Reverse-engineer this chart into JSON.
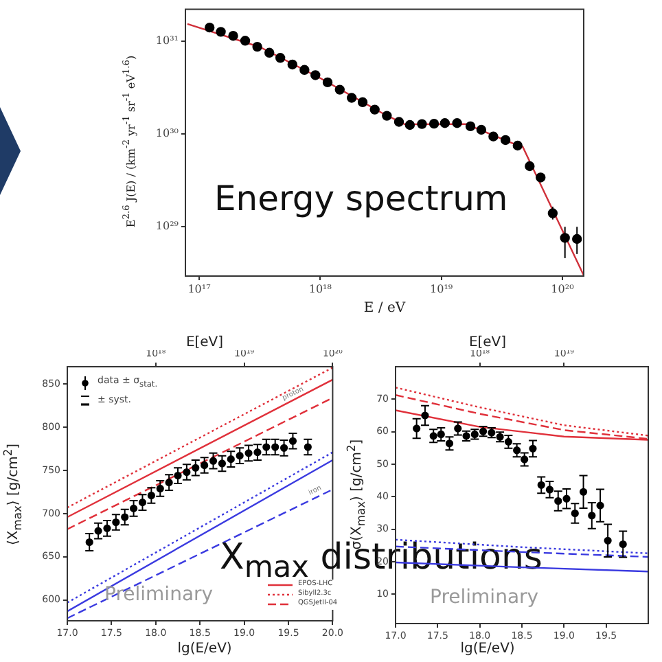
{
  "chart_data": [
    {
      "type": "scatter",
      "xlabel": "E / eV",
      "ylabel": "E$^{2.6}$ J(E) / (km$^{-2}$ yr$^{-1}$ sr$^{-1}$ eV$^{1.6}$)",
      "log": "xy",
      "xlim": [
        7.7e+16,
        1.5e+20
      ],
      "xticks": [
        {
          "value": 1e+17,
          "label": "10¹⁷"
        },
        {
          "value": 1e+18,
          "label": "10¹⁸"
        },
        {
          "value": 1e+19,
          "label": "10¹⁹"
        },
        {
          "value": 1e+20,
          "label": "10²⁰"
        }
      ],
      "ylim": [
        2.95e+28,
        2.2e+31
      ],
      "yticks": [
        {
          "value": 1e+29,
          "label": "10²⁹"
        },
        {
          "value": 1e+30,
          "label": "10³⁰"
        },
        {
          "value": 1e+31,
          "label": "10³¹"
        }
      ],
      "annotations": [
        "Energy spectrum"
      ],
      "series": [
        {
          "type": "scatter",
          "color": "#000000",
          "marker": "circle",
          "x": [
            1.22e+17,
            1.51e+17,
            1.91e+17,
            2.4e+17,
            3.02e+17,
            3.8e+17,
            4.68e+17,
            5.89e+17,
            7.41e+17,
            9.12e+17,
            1.15e+18,
            1.45e+18,
            1.82e+18,
            2.24e+18,
            2.82e+18,
            3.55e+18,
            4.47e+18,
            5.5e+18,
            6.92e+18,
            8.71e+18,
            1.07e+19,
            1.35e+19,
            1.74e+19,
            2.14e+19,
            2.69e+19,
            3.39e+19,
            4.27e+19,
            5.37e+19,
            6.61e+19,
            8.32e+19,
            1.05e+20,
            1.32e+20
          ],
          "values": [
            1.4e+31,
            1.26e+31,
            1.14e+31,
            1.01e+31,
            8.7e+30,
            7.5e+30,
            6.6e+30,
            5.6e+30,
            4.9e+30,
            4.3e+30,
            3.6e+30,
            3e+30,
            2.45e+30,
            2.2e+30,
            1.83e+30,
            1.57e+30,
            1.35e+30,
            1.25e+30,
            1.28e+30,
            1.29e+30,
            1.31e+30,
            1.31e+30,
            1.21e+30,
            1.11e+30,
            9.4e+29,
            8.6e+29,
            7.5e+29,
            4.5e+29,
            3.4e+29,
            1.4e+29,
            7.6e+28,
            7.4e+28
          ],
          "errors": [
            null,
            null,
            null,
            null,
            null,
            null,
            null,
            null,
            null,
            null,
            null,
            null,
            null,
            null,
            null,
            null,
            null,
            null,
            null,
            null,
            null,
            null,
            null,
            null,
            null,
            null,
            null,
            null,
            null,
            [
              1.2e+29,
              1.65e+29
            ],
            [
              4.6e+28,
              1e+29
            ],
            [
              5.1e+28,
              1e+29
            ]
          ]
        },
        {
          "type": "line",
          "color": "#d0303a",
          "marker": "none",
          "x": [
            8e+16,
            3.2e+17,
            1e+18,
            3.2e+18,
            5e+18,
            1.6e+19,
            4e+19,
            4.7e+19,
            1.5e+20
          ],
          "values": [
            1.53e+31,
            8.6e+30,
            4e+30,
            1.7e+30,
            1.27e+30,
            1.28e+30,
            7.8e+29,
            7.3e+29,
            3e+28
          ]
        }
      ]
    },
    {
      "type": "scatter",
      "xlabel": "lg(E/eV)",
      "x2label": "E[eV]",
      "ylabel": "⟨X$_{max}$⟩  [g/cm$^{2}$]",
      "xlim": [
        17,
        20
      ],
      "xticks": [
        {
          "value": 17,
          "label": "17.0"
        },
        {
          "value": 17.5,
          "label": "17.5"
        },
        {
          "value": 18,
          "label": "18.0"
        },
        {
          "value": 18.5,
          "label": "18.5"
        },
        {
          "value": 19,
          "label": "19.0"
        },
        {
          "value": 19.5,
          "label": "19.5"
        },
        {
          "value": 20,
          "label": "20.0"
        }
      ],
      "x2lim": [
        1e+17,
        1e+20
      ],
      "x2ticks": [
        {
          "value": 1e+18,
          "label": "10¹⁸"
        },
        {
          "value": 1e+19,
          "label": "10¹⁹"
        },
        {
          "value": 1e+20,
          "label": "10²⁰"
        }
      ],
      "log": "x2",
      "ylim": [
        576,
        870
      ],
      "yticks": [
        600,
        650,
        700,
        750,
        800,
        850
      ],
      "legend": "top left",
      "annotations": [
        {
          "text": "proton",
          "x": 19.56,
          "y": 837
        },
        {
          "text": "iron",
          "x": 19.81,
          "y": 725
        },
        "± syst.",
        "Preliminary",
        "X$_{max}$ distributions"
      ],
      "series": [
        {
          "type": "scatter",
          "name": "data ± σ$_{stat.}$",
          "color": "#000000",
          "marker": "circle",
          "x": [
            17.25,
            17.35,
            17.45,
            17.55,
            17.65,
            17.75,
            17.85,
            17.95,
            18.05,
            18.15,
            18.25,
            18.35,
            18.45,
            18.55,
            18.65,
            18.75,
            18.85,
            18.95,
            19.05,
            19.15,
            19.25,
            19.35,
            19.45,
            19.55,
            19.72
          ],
          "values": [
            667,
            680,
            683,
            690,
            696,
            706,
            713,
            721,
            729,
            736,
            744,
            748,
            753,
            756,
            761,
            758,
            763,
            767,
            770,
            771,
            777,
            777,
            776,
            784,
            777
          ],
          "errors": [
            10,
            9,
            9,
            9,
            9,
            9,
            9,
            9,
            9,
            9,
            9,
            9,
            9,
            9,
            9,
            9,
            9,
            9,
            9,
            9,
            9,
            9,
            9,
            9,
            9
          ]
        },
        {
          "type": "line",
          "name": "EPOS-LHC",
          "color": "#e0303a",
          "marker": "none",
          "line_style": "solid",
          "x": [
            17,
            20
          ],
          "values": [
            696,
            855
          ]
        },
        {
          "type": "line",
          "name": "Sibyll2.3c",
          "color": "#e0303a",
          "marker": "none",
          "line_style": "dotted",
          "x": [
            17,
            20
          ],
          "values": [
            707,
            869
          ]
        },
        {
          "type": "line",
          "name": "QGSJetII-04",
          "color": "#e0303a",
          "marker": "none",
          "line_style": "dashed",
          "x": [
            17,
            20
          ],
          "values": [
            682,
            834
          ]
        },
        {
          "type": "line",
          "color": "#3a3ae0",
          "marker": "none",
          "line_style": "solid",
          "x": [
            17,
            20
          ],
          "values": [
            587,
            762
          ]
        },
        {
          "type": "line",
          "color": "#3a3ae0",
          "marker": "none",
          "line_style": "dotted",
          "x": [
            17,
            20
          ],
          "values": [
            597,
            771
          ]
        },
        {
          "type": "line",
          "color": "#3a3ae0",
          "marker": "none",
          "line_style": "dashed",
          "x": [
            17,
            20
          ],
          "values": [
            579,
            728
          ]
        }
      ]
    },
    {
      "type": "scatter",
      "xlabel": "lg(E/eV)",
      "x2label": "E[eV]",
      "ylabel": "σ(X$_{max}$)  [g/cm$^{2}$]",
      "xlim": [
        17,
        20
      ],
      "xticks": [
        {
          "value": 17,
          "label": "17.0"
        },
        {
          "value": 17.5,
          "label": "17.5"
        },
        {
          "value": 18,
          "label": "18.0"
        },
        {
          "value": 18.5,
          "label": "18.5"
        },
        {
          "value": 19,
          "label": "19.0"
        },
        {
          "value": 19.5,
          "label": "19.5"
        }
      ],
      "x2lim": [
        1e+17,
        1e+20
      ],
      "x2ticks": [
        {
          "value": 1e+18,
          "label": "10¹⁸"
        },
        {
          "value": 1e+19,
          "label": "10¹⁹"
        }
      ],
      "log": "x2",
      "ylim": [
        1,
        80
      ],
      "yticks": [
        10,
        20,
        30,
        40,
        50,
        60,
        70
      ],
      "annotations": [
        "Preliminary"
      ],
      "series": [
        {
          "type": "scatter",
          "color": "#000000",
          "marker": "circle",
          "x": [
            17.25,
            17.35,
            17.45,
            17.54,
            17.64,
            17.74,
            17.84,
            17.94,
            18.04,
            18.14,
            18.24,
            18.34,
            18.44,
            18.53,
            18.63,
            18.73,
            18.83,
            18.93,
            19.03,
            19.13,
            19.23,
            19.33,
            19.43,
            19.52,
            19.7
          ],
          "values": [
            61,
            65,
            58.7,
            59.2,
            56.4,
            61,
            58.7,
            59.2,
            60.1,
            59.7,
            58.4,
            56.9,
            54.3,
            51.5,
            54.8,
            43.6,
            42.2,
            38.7,
            39.4,
            34.9,
            41.5,
            34.2,
            37.3,
            26.5,
            25.4
          ],
          "errors": [
            3,
            3,
            2,
            2,
            2,
            2,
            1.5,
            1.5,
            1.5,
            1.5,
            1.5,
            2,
            2,
            2,
            2.5,
            2.5,
            2.5,
            3,
            3,
            3,
            5,
            4,
            5,
            5,
            4
          ]
        },
        {
          "type": "line",
          "color": "#e0303a",
          "marker": "none",
          "line_style": "dotted",
          "x": [
            17,
            18,
            19,
            20
          ],
          "values": [
            73.6,
            67.5,
            62,
            58.8
          ]
        },
        {
          "type": "line",
          "color": "#e0303a",
          "marker": "none",
          "line_style": "dashed",
          "x": [
            17,
            18,
            19,
            20
          ],
          "values": [
            71.3,
            65.5,
            60.5,
            57.8
          ]
        },
        {
          "type": "line",
          "color": "#e0303a",
          "marker": "none",
          "line_style": "solid",
          "x": [
            17,
            18,
            19,
            20
          ],
          "values": [
            66.6,
            61.5,
            58.5,
            57.5
          ]
        },
        {
          "type": "line",
          "color": "#3a3ae0",
          "marker": "none",
          "line_style": "dotted",
          "x": [
            17,
            18.5,
            20
          ],
          "values": [
            26.8,
            24.5,
            22.6
          ]
        },
        {
          "type": "line",
          "color": "#3a3ae0",
          "marker": "none",
          "line_style": "dashed",
          "x": [
            17,
            18.5,
            20
          ],
          "values": [
            24.7,
            23,
            21.5
          ]
        },
        {
          "type": "line",
          "color": "#3a3ae0",
          "marker": "none",
          "line_style": "solid",
          "x": [
            17,
            18.5,
            20
          ],
          "values": [
            19.8,
            18.3,
            17
          ]
        }
      ]
    }
  ]
}
